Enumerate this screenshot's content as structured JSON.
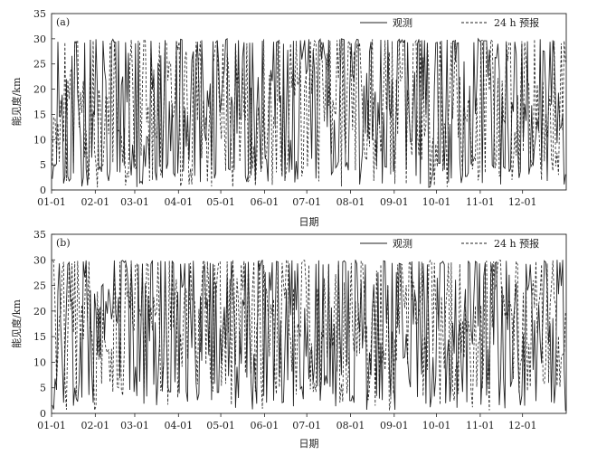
{
  "chart_data": [
    {
      "type": "line",
      "panel_label": "(a)",
      "xlabel": "日期",
      "ylabel": "能见度/km",
      "ylim": [
        0,
        35
      ],
      "yticks": [
        0,
        5,
        10,
        15,
        20,
        25,
        30,
        35
      ],
      "xticks": [
        "01-01",
        "02-01",
        "03-01",
        "04-01",
        "05-01",
        "06-01",
        "07-01",
        "08-01",
        "09-01",
        "10-01",
        "11-01",
        "12-01"
      ],
      "xticks_day": [
        0,
        31,
        59,
        90,
        120,
        151,
        181,
        212,
        243,
        273,
        304,
        334
      ],
      "x_range_day": [
        0,
        365
      ],
      "grid": false,
      "legend_position": "top-right",
      "series": [
        {
          "name": "观测",
          "style": "solid",
          "seed": 11,
          "low_rate": 0.34
        },
        {
          "name": "24  h 预报",
          "style": "dashed",
          "seed": 27,
          "low_rate": 0.26
        }
      ]
    },
    {
      "type": "line",
      "panel_label": "(b)",
      "xlabel": "日期",
      "ylabel": "能见度/km",
      "ylim": [
        0,
        35
      ],
      "yticks": [
        0,
        5,
        10,
        15,
        20,
        25,
        30,
        35
      ],
      "xticks": [
        "01-01",
        "02-01",
        "03-01",
        "04-01",
        "05-01",
        "06-01",
        "07-01",
        "08-01",
        "09-01",
        "10-01",
        "11-01",
        "12-01"
      ],
      "xticks_day": [
        0,
        31,
        59,
        90,
        120,
        151,
        181,
        212,
        243,
        273,
        304,
        334
      ],
      "x_range_day": [
        0,
        365
      ],
      "grid": false,
      "legend_position": "top-right",
      "series": [
        {
          "name": "观测",
          "style": "solid",
          "seed": 43,
          "low_rate": 0.3
        },
        {
          "name": "24  h 预报",
          "style": "dashed",
          "seed": 71,
          "low_rate": 0.22
        }
      ]
    }
  ]
}
